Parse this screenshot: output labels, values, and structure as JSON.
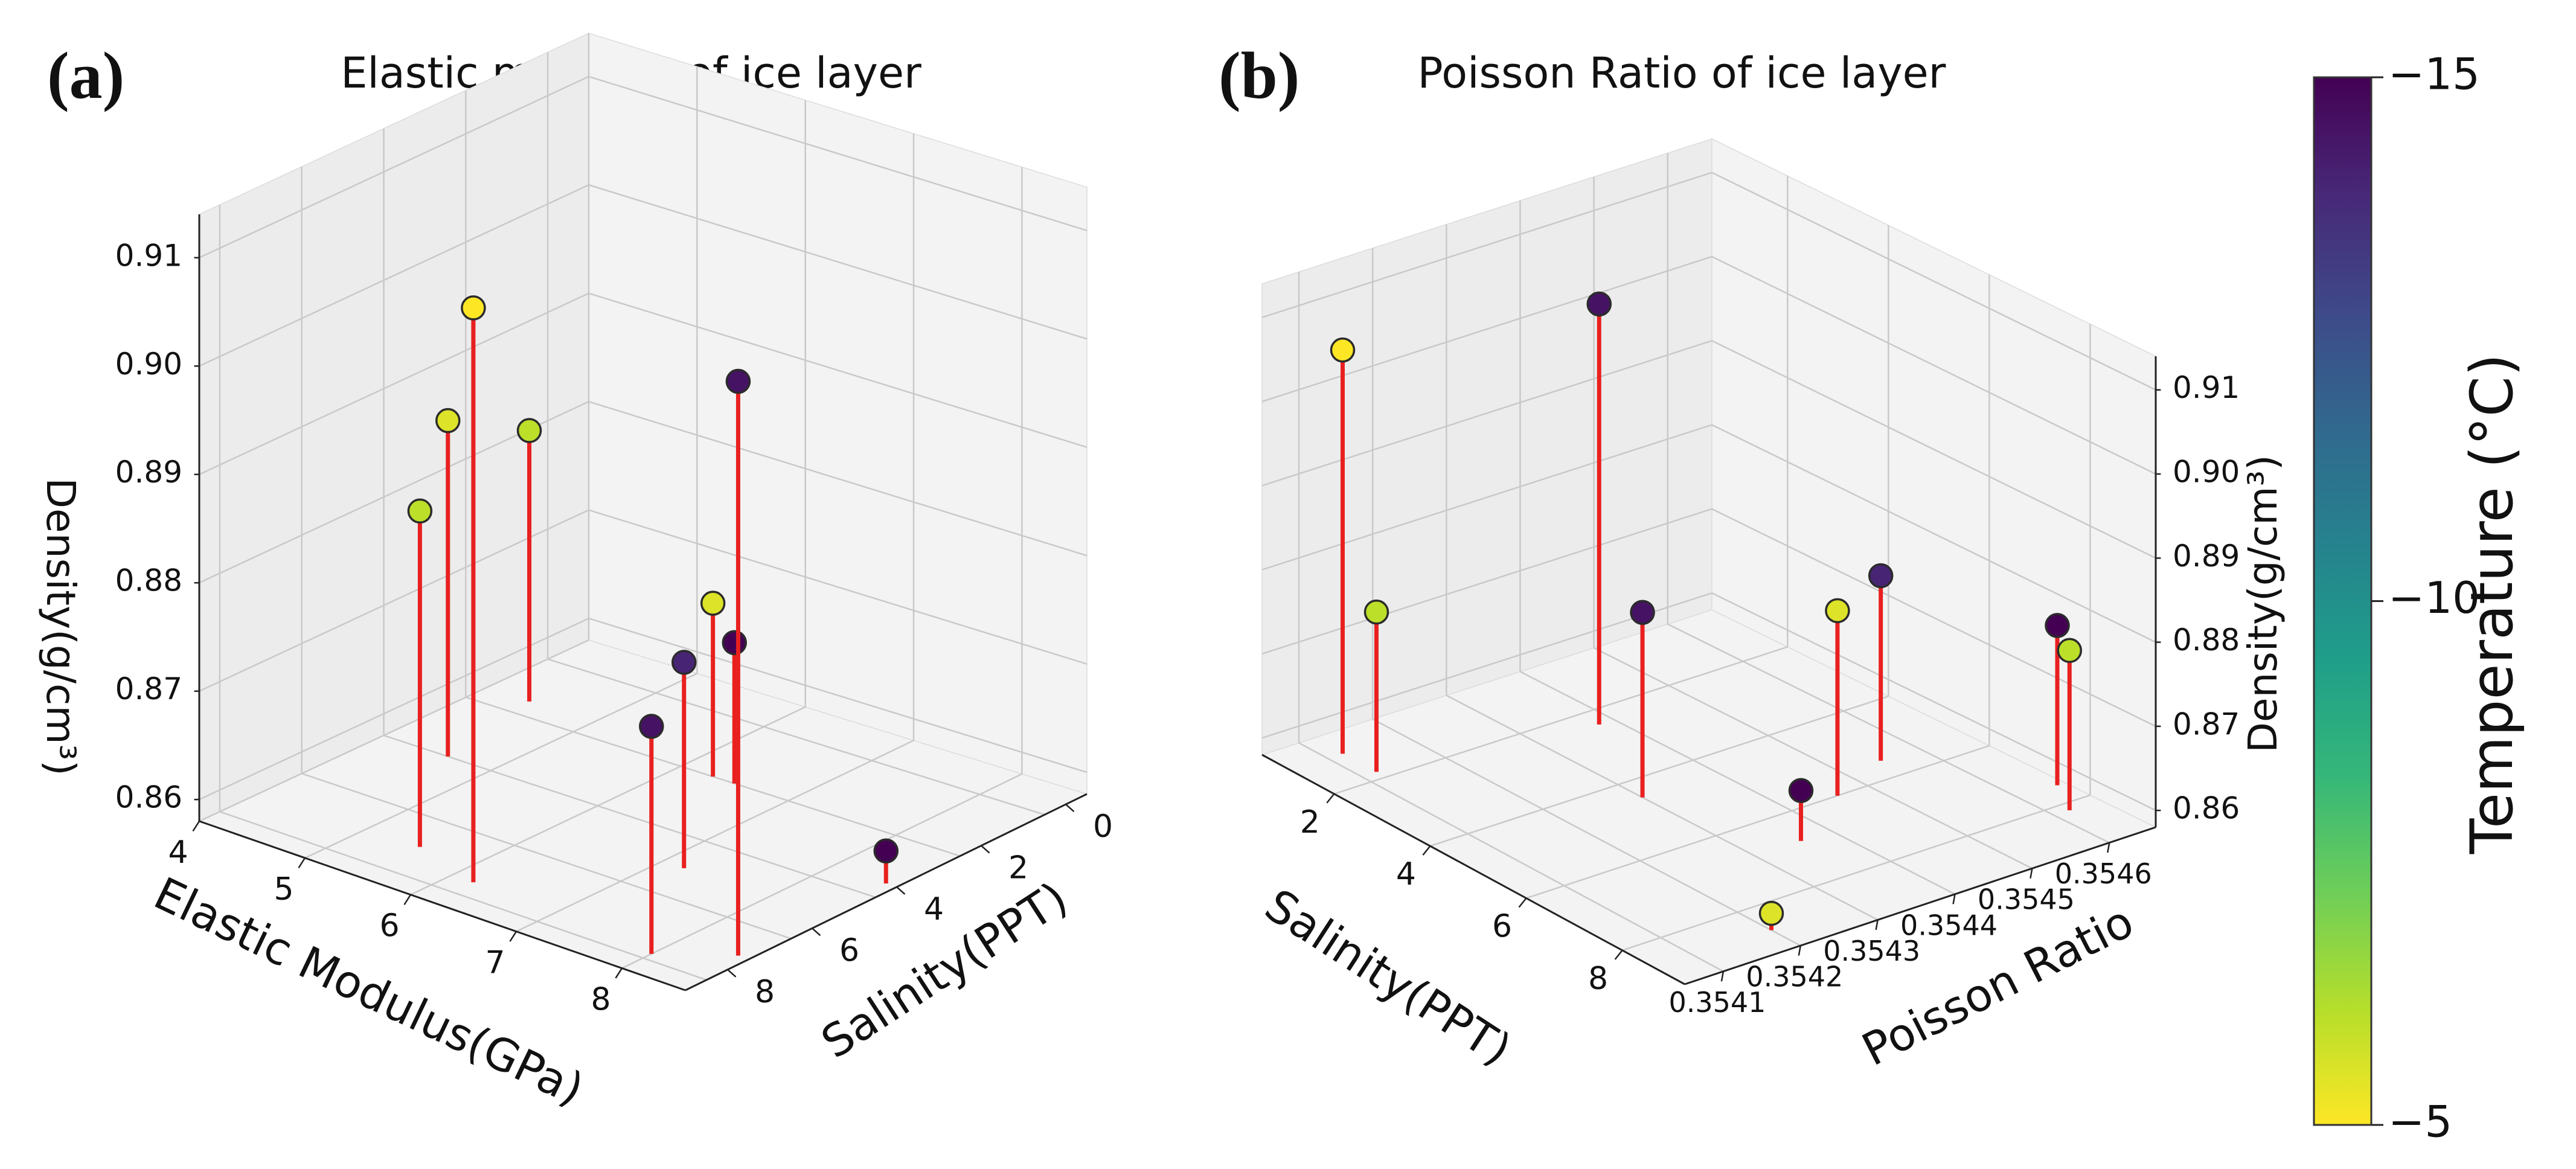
{
  "colors": {
    "stem": "#e8201f",
    "pane": "#f3f3f3",
    "pane_side": "#ececec",
    "grid": "#c9c9c9",
    "marker_edge": "#2b2b2b",
    "cmap": [
      "#fde725",
      "#b5de2b",
      "#6ece58",
      "#35b779",
      "#1f9e89",
      "#26828e",
      "#31688e",
      "#3e4989",
      "#482878",
      "#440154"
    ]
  },
  "colorbar": {
    "label": "Temperature (°C)",
    "min": -15,
    "max": -5,
    "ticks": [
      {
        "value": -15,
        "label": "−15"
      },
      {
        "value": -10,
        "label": "−10"
      },
      {
        "value": -5,
        "label": "−5"
      }
    ]
  },
  "chart_data": [
    {
      "type": "scatter3d",
      "panel_label": "(a)",
      "title": "Elastic modulus of ice layer",
      "xlabel": "Elastic Modulus(GPa)",
      "ylabel": "Salinity(PPT)",
      "zlabel": "Density(g/cm³)",
      "xlim": [
        4,
        8.6
      ],
      "ylim": [
        -0.5,
        9
      ],
      "zlim": [
        0.858,
        0.914
      ],
      "xticks": [
        {
          "value": 4,
          "label": "4"
        },
        {
          "value": 5,
          "label": "5"
        },
        {
          "value": 6,
          "label": "6"
        },
        {
          "value": 7,
          "label": "7"
        },
        {
          "value": 8,
          "label": "8"
        }
      ],
      "yticks": [
        {
          "value": 0,
          "label": "0"
        },
        {
          "value": 2,
          "label": "2"
        },
        {
          "value": 4,
          "label": "4"
        },
        {
          "value": 6,
          "label": "6"
        },
        {
          "value": 8,
          "label": "8"
        }
      ],
      "zticks": [
        {
          "value": 0.86,
          "label": "0.86"
        },
        {
          "value": 0.87,
          "label": "0.87"
        },
        {
          "value": 0.88,
          "label": "0.88"
        },
        {
          "value": 0.89,
          "label": "0.89"
        },
        {
          "value": 0.9,
          "label": "0.90"
        },
        {
          "value": 0.91,
          "label": "0.91"
        }
      ],
      "points": [
        {
          "x": 4.4,
          "y": 6.5,
          "z": 0.883,
          "temp": -6
        },
        {
          "x": 4.6,
          "y": 4.0,
          "z": 0.889,
          "temp": -5.5
        },
        {
          "x": 5.5,
          "y": 1.0,
          "z": 0.889,
          "temp": -6
        },
        {
          "x": 6.2,
          "y": 0.5,
          "z": 0.911,
          "temp": -5
        },
        {
          "x": 8.5,
          "y": 1.0,
          "z": 0.911,
          "temp": -14.5
        },
        {
          "x": 6.3,
          "y": 6.0,
          "z": 0.874,
          "temp": -5.5
        },
        {
          "x": 6.5,
          "y": 6.0,
          "z": 0.871,
          "temp": -15
        },
        {
          "x": 7.2,
          "y": 3.0,
          "z": 0.877,
          "temp": -14
        },
        {
          "x": 8.0,
          "y": 0.2,
          "z": 0.879,
          "temp": -14.5
        },
        {
          "x": 8.5,
          "y": 4.5,
          "z": 0.861,
          "temp": -15
        }
      ]
    },
    {
      "type": "scatter3d",
      "panel_label": "(b)",
      "title": "Poisson Ratio of ice layer",
      "xlabel": "Salinity(PPT)",
      "ylabel": "Poisson Ratio",
      "zlabel": "Density(g/cm³)",
      "xlim": [
        0.5,
        9.3
      ],
      "ylim": [
        0.35405,
        0.35466
      ],
      "zlim": [
        0.858,
        0.914
      ],
      "xticks": [
        {
          "value": 2,
          "label": "2"
        },
        {
          "value": 4,
          "label": "4"
        },
        {
          "value": 6,
          "label": "6"
        },
        {
          "value": 8,
          "label": "8"
        }
      ],
      "yticks": [
        {
          "value": 0.3541,
          "label": "0.3541"
        },
        {
          "value": 0.3542,
          "label": "0.3542"
        },
        {
          "value": 0.3543,
          "label": "0.3543"
        },
        {
          "value": 0.3544,
          "label": "0.3544"
        },
        {
          "value": 0.3545,
          "label": "0.3545"
        },
        {
          "value": 0.3546,
          "label": "0.3546"
        }
      ],
      "zticks": [
        {
          "value": 0.86,
          "label": "0.86"
        },
        {
          "value": 0.87,
          "label": "0.87"
        },
        {
          "value": 0.88,
          "label": "0.88"
        },
        {
          "value": 0.89,
          "label": "0.89"
        },
        {
          "value": 0.9,
          "label": "0.90"
        },
        {
          "value": 0.91,
          "label": "0.91"
        }
      ],
      "points": [
        {
          "x": 1.1,
          "y": 0.35412,
          "z": 0.906,
          "temp": -5
        },
        {
          "x": 1.8,
          "y": 0.35412,
          "z": 0.877,
          "temp": -6
        },
        {
          "x": 2.4,
          "y": 0.35438,
          "z": 0.908,
          "temp": -14.5
        },
        {
          "x": 4.5,
          "y": 0.3543,
          "z": 0.88,
          "temp": -14.5
        },
        {
          "x": 6.8,
          "y": 0.35436,
          "z": 0.864,
          "temp": -15
        },
        {
          "x": 6.0,
          "y": 0.35446,
          "z": 0.88,
          "temp": -5.5
        },
        {
          "x": 5.5,
          "y": 0.35455,
          "z": 0.88,
          "temp": -14
        },
        {
          "x": 8.7,
          "y": 0.3542,
          "z": 0.86,
          "temp": -5.5
        },
        {
          "x": 8.2,
          "y": 0.35462,
          "z": 0.877,
          "temp": -6
        },
        {
          "x": 7.5,
          "y": 0.35465,
          "z": 0.877,
          "temp": -15
        }
      ]
    }
  ]
}
